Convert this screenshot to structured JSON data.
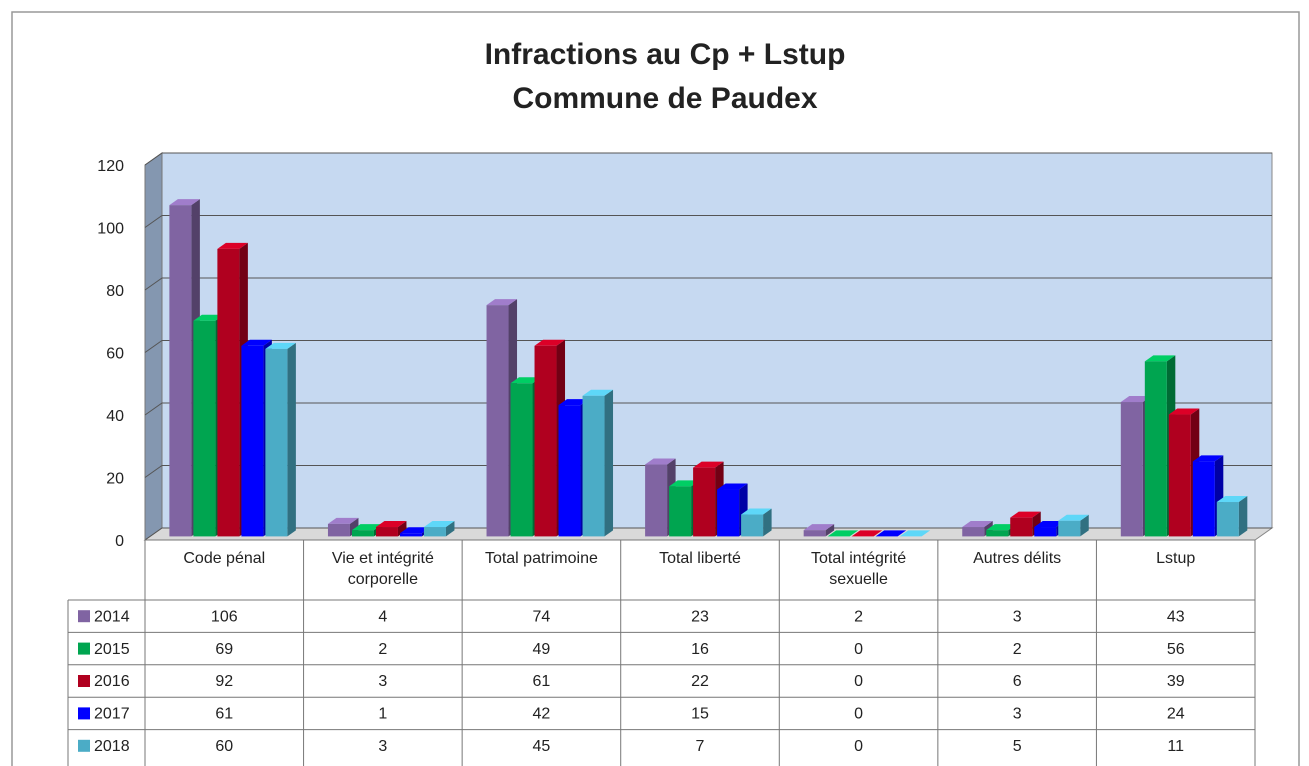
{
  "chart_data": {
    "type": "bar3d",
    "title": [
      "Infractions au Cp + Lstup",
      "Commune de Paudex"
    ],
    "categories": [
      "Code pénal",
      "Vie et intégrité corporelle",
      "Total patrimoine",
      "Total liberté",
      "Total intégrité sexuelle",
      "Autres délits",
      "Lstup"
    ],
    "series": [
      {
        "name": "2014",
        "color": "#8064a2",
        "values": [
          106,
          4,
          74,
          23,
          2,
          3,
          43
        ]
      },
      {
        "name": "2015",
        "color": "#00a550",
        "values": [
          69,
          2,
          49,
          16,
          0,
          2,
          56
        ]
      },
      {
        "name": "2016",
        "color": "#b0001f",
        "values": [
          92,
          3,
          61,
          22,
          0,
          6,
          39
        ]
      },
      {
        "name": "2017",
        "color": "#0000ff",
        "values": [
          61,
          1,
          42,
          15,
          0,
          3,
          24
        ]
      },
      {
        "name": "2018",
        "color": "#4bacc6",
        "values": [
          60,
          3,
          45,
          7,
          0,
          5,
          11
        ]
      }
    ],
    "ylim": [
      0,
      120
    ],
    "yticks": [
      0,
      20,
      40,
      60,
      80,
      100,
      120
    ],
    "grid": true,
    "data_table": true
  }
}
